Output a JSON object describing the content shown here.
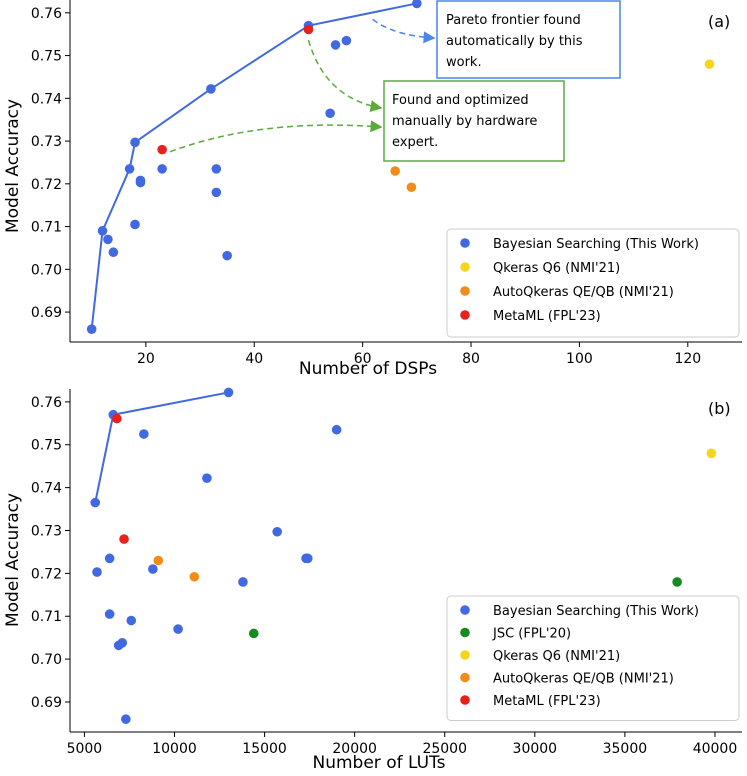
{
  "chart_data": [
    {
      "type": "scatter",
      "panel_label": "(a)",
      "xlabel": "Number of DSPs",
      "ylabel": "Model Accuracy",
      "xlim": [
        6,
        130
      ],
      "ylim": [
        0.683,
        0.763
      ],
      "xticks": [
        20,
        40,
        60,
        80,
        100,
        120
      ],
      "yticks": [
        0.69,
        0.7,
        0.71,
        0.72,
        0.73,
        0.74,
        0.75,
        0.76
      ],
      "legend_position": "lower-right",
      "series": [
        {
          "name": "Bayesian Searching (This Work)",
          "color": "#4169e1",
          "x": [
            10,
            12,
            13,
            14,
            17,
            18,
            18,
            19,
            19,
            23,
            32,
            33,
            33,
            35,
            50,
            54,
            55,
            57,
            70
          ],
          "y": [
            0.686,
            0.709,
            0.707,
            0.704,
            0.7235,
            0.7297,
            0.7105,
            0.7208,
            0.7203,
            0.7235,
            0.7422,
            0.7235,
            0.718,
            0.7032,
            0.757,
            0.7365,
            0.7525,
            0.7535,
            0.7622
          ]
        },
        {
          "name": "Qkeras Q6 (NMI'21)",
          "color": "#f5d61c",
          "x": [
            124
          ],
          "y": [
            0.748
          ]
        },
        {
          "name": "AutoQkeras QE/QB (NMI'21)",
          "color": "#f28c18",
          "x": [
            66,
            69
          ],
          "y": [
            0.723,
            0.7192
          ]
        },
        {
          "name": "MetaML (FPL'23)",
          "color": "#e8221a",
          "x": [
            23,
            50
          ],
          "y": [
            0.728,
            0.7561
          ]
        }
      ],
      "frontier": {
        "color": "#4169e1",
        "x": [
          10,
          12,
          17,
          18,
          32,
          50,
          70
        ],
        "y": [
          0.686,
          0.709,
          0.7235,
          0.7297,
          0.7422,
          0.757,
          0.7622
        ]
      },
      "annotations": [
        {
          "text_lines": [
            "Pareto frontier  found",
            "automatically by this",
            "work."
          ],
          "border": "#4a86e8",
          "arrow_color": "#4a86e8",
          "arrow_from": [
            60,
            0.7585
          ],
          "arrow_to": [
            67,
            0.7555
          ]
        },
        {
          "text_lines": [
            "Found and optimized",
            "manually by hardware",
            "expert."
          ],
          "border": "#5aaa3c",
          "arrow_color": "#5aaa3c",
          "arrow_from_list": [
            [
              23,
              0.7275
            ],
            [
              50,
              0.7555
            ]
          ],
          "arrow_to": [
            64,
            0.7337
          ]
        }
      ]
    },
    {
      "type": "scatter",
      "panel_label": "(b)",
      "xlabel": "Number of LUTs",
      "ylabel": "Model Accuracy",
      "xlim": [
        4200,
        41500
      ],
      "ylim": [
        0.683,
        0.763
      ],
      "xticks": [
        5000,
        10000,
        15000,
        20000,
        25000,
        30000,
        35000,
        40000
      ],
      "yticks": [
        0.69,
        0.7,
        0.71,
        0.72,
        0.73,
        0.74,
        0.75,
        0.76
      ],
      "legend_position": "lower-right",
      "series": [
        {
          "name": "Bayesian Searching (This Work)",
          "color": "#4169e1",
          "x": [
            5600,
            5700,
            6400,
            6400,
            6600,
            6900,
            7100,
            7300,
            7600,
            8300,
            8800,
            10200,
            11800,
            13000,
            13800,
            15700,
            17300,
            17400,
            19000
          ],
          "y": [
            0.7365,
            0.7203,
            0.7235,
            0.7105,
            0.757,
            0.7032,
            0.7038,
            0.686,
            0.709,
            0.7525,
            0.721,
            0.707,
            0.7422,
            0.7622,
            0.718,
            0.7297,
            0.7235,
            0.7235,
            0.7535
          ]
        },
        {
          "name": "JSC (FPL'20)",
          "color": "#168c1e",
          "x": [
            14400,
            37900
          ],
          "y": [
            0.706,
            0.718
          ]
        },
        {
          "name": "Qkeras Q6 (NMI'21)",
          "color": "#f5d61c",
          "x": [
            39800
          ],
          "y": [
            0.748
          ]
        },
        {
          "name": "AutoQkeras QE/QB (NMI'21)",
          "color": "#f28c18",
          "x": [
            9100,
            11100
          ],
          "y": [
            0.723,
            0.7192
          ]
        },
        {
          "name": "MetaML (FPL'23)",
          "color": "#e8221a",
          "x": [
            7200,
            6800
          ],
          "y": [
            0.728,
            0.7561
          ]
        }
      ],
      "frontier": {
        "color": "#4169e1",
        "x": [
          5600,
          6600,
          13000
        ],
        "y": [
          0.7365,
          0.757,
          0.7622
        ]
      }
    }
  ]
}
